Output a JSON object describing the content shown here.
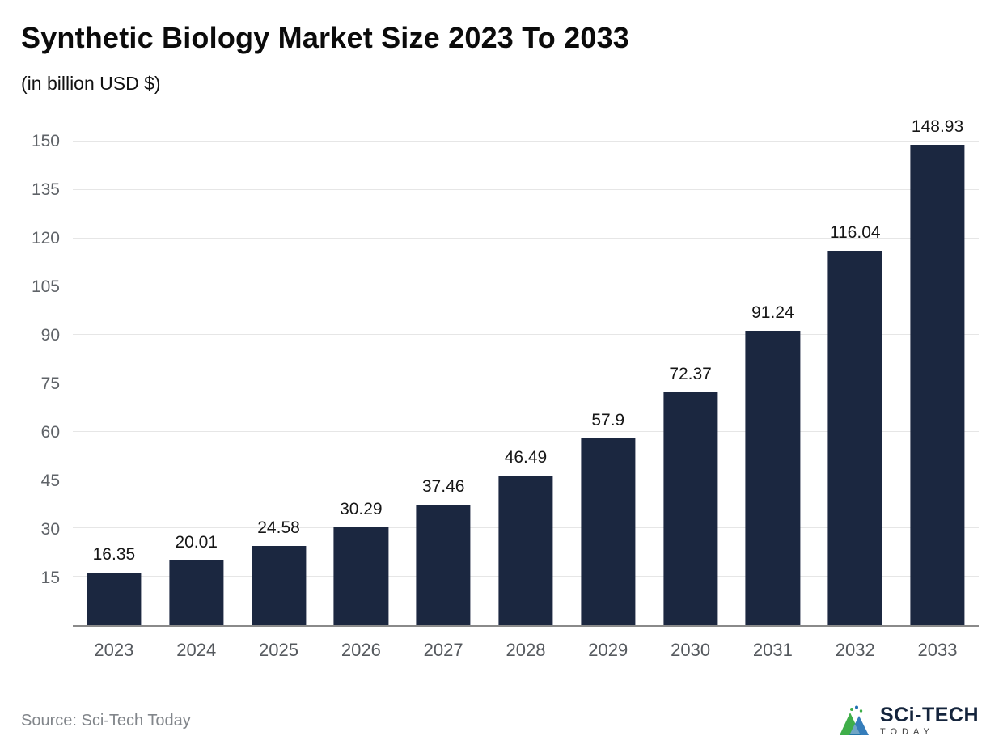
{
  "header": {
    "title": "Synthetic Biology Market Size 2023 To 2033",
    "subtitle": "(in billion USD $)"
  },
  "footer": {
    "source": "Source: Sci-Tech Today",
    "brand": {
      "name": "SCi-TECH",
      "tagline": "TODAY"
    }
  },
  "colors": {
    "bar": "#1b2740",
    "grid": "#e6e6e6",
    "baseline": "#8a8a8a",
    "axis_text": "#5f6368",
    "value_text": "#161616",
    "brand_green": "#3fae49",
    "brand_blue": "#1f6fb2"
  },
  "chart_data": {
    "type": "bar",
    "title": "Synthetic Biology Market Size 2023 To 2033",
    "subtitle": "(in billion USD $)",
    "categories": [
      "2023",
      "2024",
      "2025",
      "2026",
      "2027",
      "2028",
      "2029",
      "2030",
      "2031",
      "2032",
      "2033"
    ],
    "values": [
      16.35,
      20.01,
      24.58,
      30.29,
      37.46,
      46.49,
      57.9,
      72.37,
      91.24,
      116.04,
      148.93
    ],
    "value_labels": [
      "16.35",
      "20.01",
      "24.58",
      "30.29",
      "37.46",
      "46.49",
      "57.9",
      "72.37",
      "91.24",
      "116.04",
      "148.93"
    ],
    "xlabel": "",
    "ylabel": "",
    "ylim": [
      0,
      150
    ],
    "yticks": [
      15,
      30,
      45,
      60,
      75,
      90,
      105,
      120,
      135,
      150
    ],
    "grid": "horizontal",
    "legend": "none",
    "bar_color": "#1b2740"
  }
}
